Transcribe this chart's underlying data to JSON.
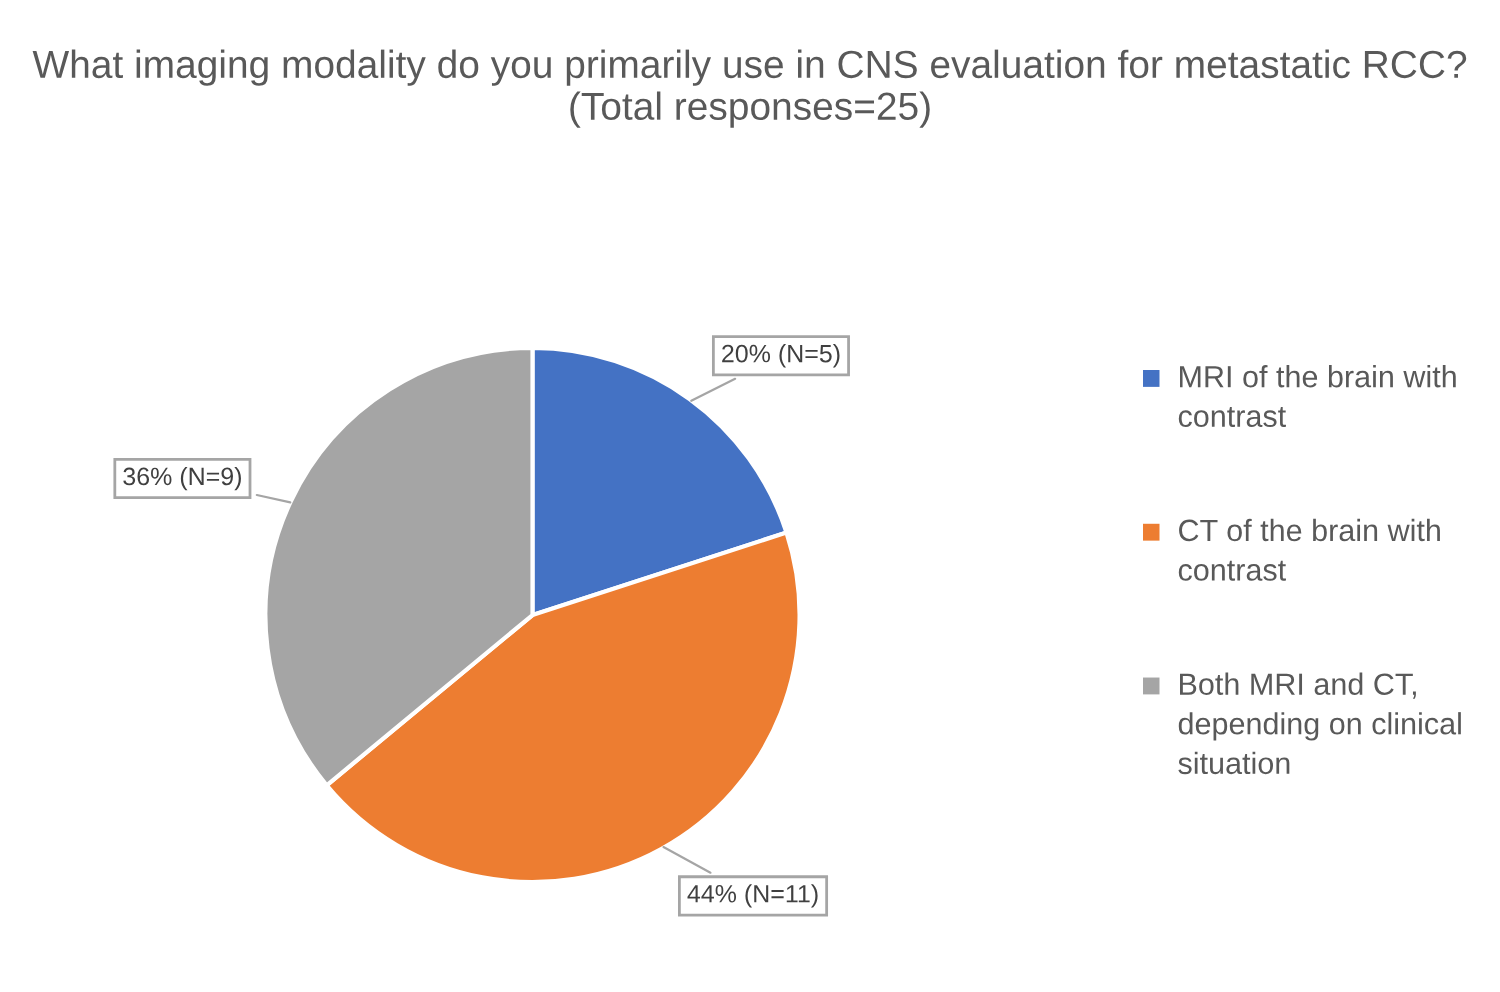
{
  "chart_data": {
    "type": "pie",
    "title": "What imaging modality do you primarily use in CNS evaluation for metastatic RCC? (Total responses=25)",
    "categories": [
      "MRI of the brain with contrast",
      "CT of the brain with contrast",
      "Both MRI and CT, depending on clinical situation"
    ],
    "values": [
      20,
      44,
      36
    ],
    "colors": [
      "#4472c4",
      "#ed7d31",
      "#a5a5a5"
    ],
    "value_labels": [
      "20% (N=5)",
      "44% (N=11)",
      "36% (N=9)"
    ],
    "legend": "right"
  }
}
